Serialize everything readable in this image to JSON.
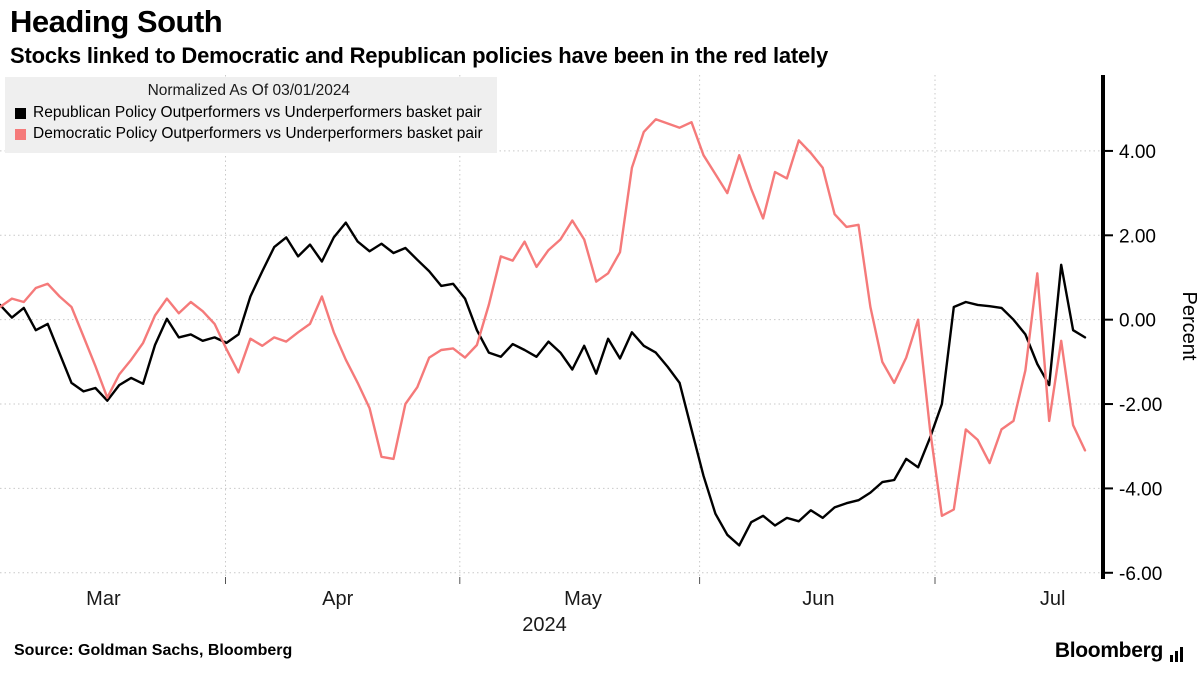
{
  "footer": {
    "source": "Source: Goldman Sachs, Bloomberg",
    "logo_text": "Bloomberg"
  },
  "chart_data": {
    "type": "line",
    "title": "Heading South",
    "subtitle": "Stocks linked to Democratic and Republican policies have been in the red lately",
    "legend_title": "Normalized As Of 03/01/2024",
    "legend_position": "top-left",
    "ylabel": "Percent",
    "xlabel": "2024",
    "grid": true,
    "ylim": [
      -6.1,
      5.8
    ],
    "yticks": [
      4,
      2,
      0,
      -2,
      -4,
      -6
    ],
    "ytick_labels": [
      "4.00",
      "2.00",
      "0.00",
      "-2.00",
      "-4.00",
      "-6.00"
    ],
    "xtick_labels": [
      "Mar",
      "Apr",
      "May",
      "Jun",
      "Jul"
    ],
    "xtick_positions": [
      0.094,
      0.307,
      0.53,
      0.744,
      0.957
    ],
    "x_gridline_positions": [
      0.205,
      0.418,
      0.636,
      0.85
    ],
    "series": [
      {
        "name": "Republican Policy Outperformers vs Underperformers basket pair",
        "color": "#000000",
        "values": [
          0.35,
          0.05,
          0.28,
          -0.25,
          -0.1,
          -0.8,
          -1.5,
          -1.7,
          -1.62,
          -1.92,
          -1.55,
          -1.38,
          -1.52,
          -0.6,
          0.02,
          -0.42,
          -0.35,
          -0.5,
          -0.42,
          -0.55,
          -0.35,
          0.55,
          1.15,
          1.72,
          1.95,
          1.5,
          1.78,
          1.38,
          1.95,
          2.3,
          1.85,
          1.62,
          1.8,
          1.58,
          1.7,
          1.42,
          1.15,
          0.8,
          0.85,
          0.5,
          -0.25,
          -0.78,
          -0.88,
          -0.58,
          -0.72,
          -0.88,
          -0.52,
          -0.78,
          -1.18,
          -0.62,
          -1.28,
          -0.45,
          -0.92,
          -0.3,
          -0.62,
          -0.78,
          -1.12,
          -1.5,
          -2.6,
          -3.7,
          -4.6,
          -5.1,
          -5.35,
          -4.8,
          -4.65,
          -4.88,
          -4.7,
          -4.78,
          -4.52,
          -4.7,
          -4.45,
          -4.35,
          -4.28,
          -4.1,
          -3.85,
          -3.8,
          -3.3,
          -3.5,
          -2.8,
          -2.0,
          0.3,
          0.42,
          0.35,
          0.32,
          0.28,
          0.0,
          -0.35,
          -1.05,
          -1.55,
          1.3,
          -0.25,
          -0.42
        ]
      },
      {
        "name": "Democratic Policy Outperformers vs Underperformers basket pair",
        "color": "#f57a7a",
        "values": [
          0.3,
          0.5,
          0.42,
          0.75,
          0.85,
          0.55,
          0.3,
          -0.4,
          -1.1,
          -1.85,
          -1.3,
          -0.95,
          -0.55,
          0.1,
          0.5,
          0.15,
          0.42,
          0.2,
          -0.1,
          -0.7,
          -1.25,
          -0.45,
          -0.62,
          -0.42,
          -0.52,
          -0.3,
          -0.1,
          0.55,
          -0.3,
          -0.95,
          -1.5,
          -2.1,
          -3.25,
          -3.3,
          -2.0,
          -1.6,
          -0.9,
          -0.72,
          -0.68,
          -0.9,
          -0.6,
          0.35,
          1.5,
          1.4,
          1.85,
          1.25,
          1.65,
          1.9,
          2.35,
          1.9,
          0.9,
          1.1,
          1.6,
          3.6,
          4.45,
          4.75,
          4.65,
          4.55,
          4.68,
          3.9,
          3.45,
          3.0,
          3.9,
          3.1,
          2.4,
          3.5,
          3.35,
          4.25,
          3.95,
          3.6,
          2.5,
          2.2,
          2.25,
          0.3,
          -1.0,
          -1.5,
          -0.9,
          0.0,
          -2.6,
          -4.65,
          -4.5,
          -2.6,
          -2.85,
          -3.4,
          -2.6,
          -2.4,
          -1.2,
          1.1,
          -2.4,
          -0.5,
          -2.5,
          -3.1
        ]
      }
    ]
  }
}
